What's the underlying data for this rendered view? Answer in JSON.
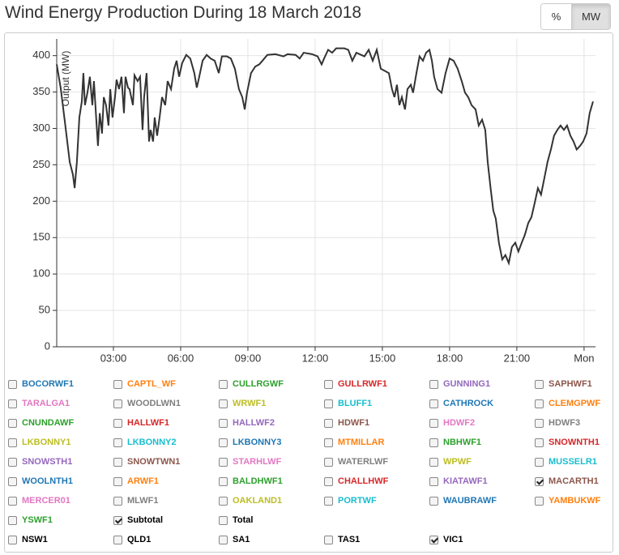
{
  "header": {
    "title": "Wind Energy Production During 18 March 2018"
  },
  "units": {
    "options": [
      "%",
      "MW"
    ],
    "selected": 1
  },
  "chart_data": {
    "type": "line",
    "ylabel": "Output (MW)",
    "color": "#333333",
    "grid": true,
    "xlim": [
      0.47,
      24.51
    ],
    "ylim": [
      0,
      423
    ],
    "xticks": [
      {
        "value": 3,
        "label": "03:00"
      },
      {
        "value": 6,
        "label": "06:00"
      },
      {
        "value": 9,
        "label": "09:00"
      },
      {
        "value": 12,
        "label": "12:00"
      },
      {
        "value": 15,
        "label": "15:00"
      },
      {
        "value": 18,
        "label": "18:00"
      },
      {
        "value": 21,
        "label": "21:00"
      },
      {
        "value": 24,
        "label": "Mon"
      }
    ],
    "yticks": [
      0,
      50,
      100,
      150,
      200,
      250,
      300,
      350,
      400
    ],
    "x": [
      0.47,
      0.65,
      0.83,
      1.05,
      1.19,
      1.27,
      1.37,
      1.48,
      1.59,
      1.66,
      1.73,
      1.84,
      1.95,
      2.06,
      2.13,
      2.24,
      2.31,
      2.39,
      2.49,
      2.57,
      2.67,
      2.78,
      2.86,
      2.96,
      3.07,
      3.14,
      3.25,
      3.36,
      3.47,
      3.54,
      3.65,
      3.72,
      3.87,
      3.94,
      4.08,
      4.19,
      4.3,
      4.37,
      4.48,
      4.59,
      4.66,
      4.77,
      4.84,
      4.95,
      5.06,
      5.17,
      5.31,
      5.42,
      5.57,
      5.71,
      5.82,
      5.93,
      6.07,
      6.25,
      6.43,
      6.61,
      6.72,
      6.83,
      6.98,
      7.16,
      7.34,
      7.52,
      7.7,
      7.84,
      8.06,
      8.24,
      8.42,
      8.6,
      8.75,
      8.86,
      8.96,
      9.14,
      9.33,
      9.51,
      9.65,
      9.87,
      10.23,
      10.59,
      10.77,
      11.13,
      11.31,
      11.49,
      11.86,
      12.11,
      12.29,
      12.4,
      12.58,
      12.76,
      12.94,
      13.3,
      13.48,
      13.66,
      13.84,
      14.2,
      14.39,
      14.57,
      14.75,
      14.93,
      15.11,
      15.29,
      15.43,
      15.54,
      15.65,
      15.76,
      15.87,
      16.01,
      16.12,
      16.27,
      16.37,
      16.52,
      16.66,
      16.81,
      16.95,
      17.1,
      17.21,
      17.31,
      17.46,
      17.64,
      17.82,
      18.0,
      18.18,
      18.36,
      18.54,
      18.69,
      18.83,
      18.98,
      19.16,
      19.3,
      19.45,
      19.59,
      19.7,
      19.84,
      19.95,
      20.06,
      20.2,
      20.35,
      20.49,
      20.64,
      20.78,
      20.93,
      21.07,
      21.22,
      21.36,
      21.51,
      21.65,
      21.8,
      21.94,
      22.08,
      22.23,
      22.37,
      22.52,
      22.66,
      22.81,
      22.95,
      23.1,
      23.24,
      23.39,
      23.53,
      23.67,
      23.82,
      23.96,
      24.11,
      24.25,
      24.4
    ],
    "values": [
      388,
      355,
      310,
      254,
      237,
      218,
      254,
      315,
      337,
      376,
      332,
      349,
      371,
      332,
      365,
      310,
      276,
      321,
      293,
      343,
      332,
      304,
      354,
      315,
      343,
      367,
      354,
      371,
      321,
      371,
      356,
      354,
      332,
      373,
      365,
      371,
      298,
      343,
      376,
      282,
      298,
      282,
      315,
      290,
      315,
      343,
      332,
      365,
      354,
      382,
      393,
      371,
      390,
      401,
      396,
      376,
      356,
      371,
      393,
      401,
      396,
      393,
      376,
      399,
      399,
      396,
      382,
      354,
      343,
      326,
      349,
      376,
      385,
      388,
      393,
      401,
      402,
      399,
      402,
      401,
      396,
      404,
      402,
      399,
      388,
      396,
      408,
      404,
      410,
      410,
      408,
      393,
      404,
      399,
      408,
      393,
      408,
      382,
      379,
      376,
      354,
      343,
      360,
      332,
      343,
      326,
      354,
      360,
      349,
      376,
      399,
      393,
      404,
      408,
      393,
      371,
      354,
      349,
      376,
      396,
      393,
      382,
      365,
      349,
      343,
      332,
      326,
      304,
      312,
      298,
      254,
      215,
      187,
      176,
      143,
      120,
      126,
      115,
      137,
      143,
      131,
      143,
      154,
      170,
      178,
      198,
      218,
      209,
      232,
      254,
      271,
      290,
      298,
      304,
      298,
      304,
      290,
      282,
      271,
      276,
      282,
      293,
      321,
      337
    ]
  },
  "stations": [
    {
      "label": "BOCORWF1",
      "color": "#1f77b4",
      "checked": false
    },
    {
      "label": "CAPTL_WF",
      "color": "#ff7f0e",
      "checked": false
    },
    {
      "label": "CULLRGWF",
      "color": "#2ca02c",
      "checked": false
    },
    {
      "label": "GULLRWF1",
      "color": "#d62728",
      "checked": false
    },
    {
      "label": "GUNNING1",
      "color": "#9467bd",
      "checked": false
    },
    {
      "label": "SAPHWF1",
      "color": "#8c564b",
      "checked": false
    },
    {
      "label": "TARALGA1",
      "color": "#e377c2",
      "checked": false
    },
    {
      "label": "WOODLWN1",
      "color": "#7f7f7f",
      "checked": false
    },
    {
      "label": "WRWF1",
      "color": "#bcbd22",
      "checked": false
    },
    {
      "label": "BLUFF1",
      "color": "#17becf",
      "checked": false
    },
    {
      "label": "CATHROCK",
      "color": "#1f77b4",
      "checked": false
    },
    {
      "label": "CLEMGPWF",
      "color": "#ff7f0e",
      "checked": false
    },
    {
      "label": "CNUNDAWF",
      "color": "#2ca02c",
      "checked": false
    },
    {
      "label": "HALLWF1",
      "color": "#d62728",
      "checked": false
    },
    {
      "label": "HALLWF2",
      "color": "#9467bd",
      "checked": false
    },
    {
      "label": "HDWF1",
      "color": "#8c564b",
      "checked": false
    },
    {
      "label": "HDWF2",
      "color": "#e377c2",
      "checked": false
    },
    {
      "label": "HDWF3",
      "color": "#7f7f7f",
      "checked": false
    },
    {
      "label": "LKBONNY1",
      "color": "#bcbd22",
      "checked": false
    },
    {
      "label": "LKBONNY2",
      "color": "#17becf",
      "checked": false
    },
    {
      "label": "LKBONNY3",
      "color": "#1f77b4",
      "checked": false
    },
    {
      "label": "MTMILLAR",
      "color": "#ff7f0e",
      "checked": false
    },
    {
      "label": "NBHWF1",
      "color": "#2ca02c",
      "checked": false
    },
    {
      "label": "SNOWNTH1",
      "color": "#d62728",
      "checked": false
    },
    {
      "label": "SNOWSTH1",
      "color": "#9467bd",
      "checked": false
    },
    {
      "label": "SNOWTWN1",
      "color": "#8c564b",
      "checked": false
    },
    {
      "label": "STARHLWF",
      "color": "#e377c2",
      "checked": false
    },
    {
      "label": "WATERLWF",
      "color": "#7f7f7f",
      "checked": false
    },
    {
      "label": "WPWF",
      "color": "#bcbd22",
      "checked": false
    },
    {
      "label": "MUSSELR1",
      "color": "#17becf",
      "checked": false
    },
    {
      "label": "WOOLNTH1",
      "color": "#1f77b4",
      "checked": false
    },
    {
      "label": "ARWF1",
      "color": "#ff7f0e",
      "checked": false
    },
    {
      "label": "BALDHWF1",
      "color": "#2ca02c",
      "checked": false
    },
    {
      "label": "CHALLHWF",
      "color": "#d62728",
      "checked": false
    },
    {
      "label": "KIATAWF1",
      "color": "#9467bd",
      "checked": false
    },
    {
      "label": "MACARTH1",
      "color": "#8c564b",
      "checked": true
    },
    {
      "label": "MERCER01",
      "color": "#e377c2",
      "checked": false
    },
    {
      "label": "MLWF1",
      "color": "#7f7f7f",
      "checked": false
    },
    {
      "label": "OAKLAND1",
      "color": "#bcbd22",
      "checked": false
    },
    {
      "label": "PORTWF",
      "color": "#17becf",
      "checked": false
    },
    {
      "label": "WAUBRAWF",
      "color": "#1f77b4",
      "checked": false
    },
    {
      "label": "YAMBUKWF",
      "color": "#ff7f0e",
      "checked": false
    },
    {
      "label": "YSWF1",
      "color": "#2ca02c",
      "checked": false
    },
    {
      "label": "Subtotal",
      "color": "#000000",
      "checked": true
    },
    {
      "label": "Total",
      "color": "#000000",
      "checked": false
    }
  ],
  "regions": [
    {
      "label": "NSW1",
      "checked": false
    },
    {
      "label": "QLD1",
      "checked": false
    },
    {
      "label": "SA1",
      "checked": false
    },
    {
      "label": "TAS1",
      "checked": false
    },
    {
      "label": "VIC1",
      "checked": true
    }
  ]
}
